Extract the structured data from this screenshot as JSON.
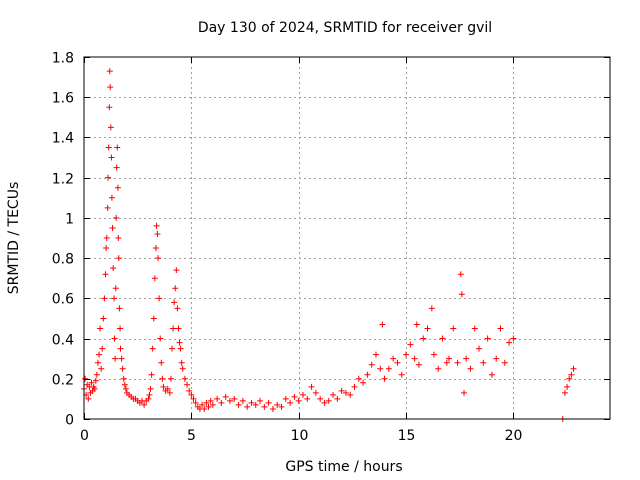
{
  "chart_data": {
    "type": "scatter",
    "title": "Day 130 of 2024, SRMTID for receiver gvil",
    "xlabel": "GPS time / hours",
    "ylabel": "SRMTID / TECUs",
    "xlim": [
      0,
      24.5
    ],
    "ylim": [
      0,
      1.8
    ],
    "xticks": [
      0,
      5,
      10,
      15,
      20
    ],
    "yticks": [
      0,
      0.2,
      0.4,
      0.6,
      0.8,
      1,
      1.2,
      1.4,
      1.6,
      1.8
    ],
    "xtick_labels": [
      "0",
      "5",
      "10",
      "15",
      "20"
    ],
    "ytick_labels": [
      "0",
      "0.2",
      "0.4",
      "0.6",
      "0.8",
      "1",
      "1.2",
      "1.4",
      "1.6",
      "1.8"
    ],
    "grid": true,
    "marker": "+",
    "color": "#ff0000",
    "series": [
      {
        "name": "gvil",
        "points": [
          [
            0.0,
            0.15
          ],
          [
            0.05,
            0.2
          ],
          [
            0.1,
            0.12
          ],
          [
            0.15,
            0.17
          ],
          [
            0.2,
            0.1
          ],
          [
            0.25,
            0.16
          ],
          [
            0.3,
            0.13
          ],
          [
            0.35,
            0.18
          ],
          [
            0.4,
            0.14
          ],
          [
            0.45,
            0.16
          ],
          [
            0.5,
            0.15
          ],
          [
            0.55,
            0.19
          ],
          [
            0.6,
            0.22
          ],
          [
            0.65,
            0.28
          ],
          [
            0.7,
            0.32
          ],
          [
            0.75,
            0.45
          ],
          [
            0.8,
            0.25
          ],
          [
            0.85,
            0.35
          ],
          [
            0.9,
            0.5
          ],
          [
            0.95,
            0.6
          ],
          [
            1.0,
            0.72
          ],
          [
            1.03,
            0.85
          ],
          [
            1.06,
            0.9
          ],
          [
            1.1,
            1.05
          ],
          [
            1.12,
            1.2
          ],
          [
            1.15,
            1.35
          ],
          [
            1.18,
            1.55
          ],
          [
            1.2,
            1.73
          ],
          [
            1.22,
            1.65
          ],
          [
            1.25,
            1.45
          ],
          [
            1.28,
            1.3
          ],
          [
            1.3,
            1.1
          ],
          [
            1.33,
            0.95
          ],
          [
            1.36,
            0.75
          ],
          [
            1.4,
            0.6
          ],
          [
            1.42,
            0.4
          ],
          [
            1.45,
            0.3
          ],
          [
            1.48,
            0.65
          ],
          [
            1.5,
            1.0
          ],
          [
            1.52,
            1.25
          ],
          [
            1.55,
            1.35
          ],
          [
            1.58,
            1.15
          ],
          [
            1.6,
            0.9
          ],
          [
            1.62,
            0.8
          ],
          [
            1.65,
            0.55
          ],
          [
            1.68,
            0.45
          ],
          [
            1.7,
            0.35
          ],
          [
            1.75,
            0.3
          ],
          [
            1.8,
            0.25
          ],
          [
            1.85,
            0.2
          ],
          [
            1.9,
            0.17
          ],
          [
            1.95,
            0.15
          ],
          [
            2.0,
            0.13
          ],
          [
            2.1,
            0.12
          ],
          [
            2.2,
            0.11
          ],
          [
            2.3,
            0.1
          ],
          [
            2.4,
            0.1
          ],
          [
            2.5,
            0.09
          ],
          [
            2.6,
            0.08
          ],
          [
            2.7,
            0.09
          ],
          [
            2.8,
            0.07
          ],
          [
            2.9,
            0.09
          ],
          [
            3.0,
            0.1
          ],
          [
            3.05,
            0.12
          ],
          [
            3.1,
            0.15
          ],
          [
            3.15,
            0.22
          ],
          [
            3.2,
            0.35
          ],
          [
            3.25,
            0.5
          ],
          [
            3.3,
            0.7
          ],
          [
            3.35,
            0.85
          ],
          [
            3.38,
            0.96
          ],
          [
            3.42,
            0.92
          ],
          [
            3.45,
            0.8
          ],
          [
            3.5,
            0.6
          ],
          [
            3.55,
            0.4
          ],
          [
            3.6,
            0.28
          ],
          [
            3.65,
            0.2
          ],
          [
            3.7,
            0.16
          ],
          [
            3.8,
            0.14
          ],
          [
            3.9,
            0.15
          ],
          [
            4.0,
            0.13
          ],
          [
            4.05,
            0.2
          ],
          [
            4.1,
            0.35
          ],
          [
            4.15,
            0.45
          ],
          [
            4.2,
            0.58
          ],
          [
            4.25,
            0.65
          ],
          [
            4.3,
            0.74
          ],
          [
            4.35,
            0.55
          ],
          [
            4.4,
            0.45
          ],
          [
            4.45,
            0.38
          ],
          [
            4.5,
            0.35
          ],
          [
            4.55,
            0.28
          ],
          [
            4.6,
            0.25
          ],
          [
            4.7,
            0.2
          ],
          [
            4.8,
            0.17
          ],
          [
            4.9,
            0.14
          ],
          [
            5.0,
            0.12
          ],
          [
            5.1,
            0.1
          ],
          [
            5.2,
            0.08
          ],
          [
            5.3,
            0.06
          ],
          [
            5.4,
            0.05
          ],
          [
            5.5,
            0.07
          ],
          [
            5.6,
            0.05
          ],
          [
            5.7,
            0.08
          ],
          [
            5.8,
            0.06
          ],
          [
            5.9,
            0.09
          ],
          [
            6.0,
            0.07
          ],
          [
            6.2,
            0.1
          ],
          [
            6.4,
            0.08
          ],
          [
            6.6,
            0.11
          ],
          [
            6.8,
            0.09
          ],
          [
            7.0,
            0.1
          ],
          [
            7.2,
            0.07
          ],
          [
            7.4,
            0.09
          ],
          [
            7.6,
            0.06
          ],
          [
            7.8,
            0.08
          ],
          [
            8.0,
            0.07
          ],
          [
            8.2,
            0.09
          ],
          [
            8.4,
            0.06
          ],
          [
            8.6,
            0.08
          ],
          [
            8.8,
            0.05
          ],
          [
            9.0,
            0.07
          ],
          [
            9.2,
            0.06
          ],
          [
            9.4,
            0.1
          ],
          [
            9.6,
            0.08
          ],
          [
            9.8,
            0.11
          ],
          [
            10.0,
            0.09
          ],
          [
            10.2,
            0.12
          ],
          [
            10.4,
            0.1
          ],
          [
            10.6,
            0.16
          ],
          [
            10.8,
            0.13
          ],
          [
            11.0,
            0.1
          ],
          [
            11.2,
            0.08
          ],
          [
            11.4,
            0.09
          ],
          [
            11.6,
            0.12
          ],
          [
            11.8,
            0.1
          ],
          [
            12.0,
            0.14
          ],
          [
            12.2,
            0.13
          ],
          [
            12.4,
            0.12
          ],
          [
            12.6,
            0.16
          ],
          [
            12.8,
            0.2
          ],
          [
            13.0,
            0.18
          ],
          [
            13.2,
            0.22
          ],
          [
            13.4,
            0.27
          ],
          [
            13.6,
            0.32
          ],
          [
            13.8,
            0.25
          ],
          [
            13.9,
            0.47
          ],
          [
            14.0,
            0.2
          ],
          [
            14.2,
            0.25
          ],
          [
            14.4,
            0.3
          ],
          [
            14.6,
            0.28
          ],
          [
            14.8,
            0.22
          ],
          [
            15.0,
            0.32
          ],
          [
            15.2,
            0.37
          ],
          [
            15.4,
            0.3
          ],
          [
            15.5,
            0.47
          ],
          [
            15.6,
            0.27
          ],
          [
            15.8,
            0.4
          ],
          [
            16.0,
            0.45
          ],
          [
            16.2,
            0.55
          ],
          [
            16.3,
            0.32
          ],
          [
            16.5,
            0.25
          ],
          [
            16.7,
            0.4
          ],
          [
            16.9,
            0.28
          ],
          [
            17.0,
            0.3
          ],
          [
            17.2,
            0.45
          ],
          [
            17.4,
            0.28
          ],
          [
            17.55,
            0.72
          ],
          [
            17.6,
            0.62
          ],
          [
            17.7,
            0.13
          ],
          [
            17.8,
            0.3
          ],
          [
            18.0,
            0.25
          ],
          [
            18.2,
            0.45
          ],
          [
            18.4,
            0.35
          ],
          [
            18.6,
            0.28
          ],
          [
            18.8,
            0.4
          ],
          [
            19.0,
            0.22
          ],
          [
            19.2,
            0.3
          ],
          [
            19.4,
            0.45
          ],
          [
            19.6,
            0.28
          ],
          [
            19.8,
            0.38
          ],
          [
            20.0,
            0.4
          ],
          [
            22.3,
            0.0
          ],
          [
            22.4,
            0.13
          ],
          [
            22.5,
            0.16
          ],
          [
            22.6,
            0.2
          ],
          [
            22.7,
            0.22
          ],
          [
            22.8,
            0.25
          ]
        ]
      }
    ]
  }
}
